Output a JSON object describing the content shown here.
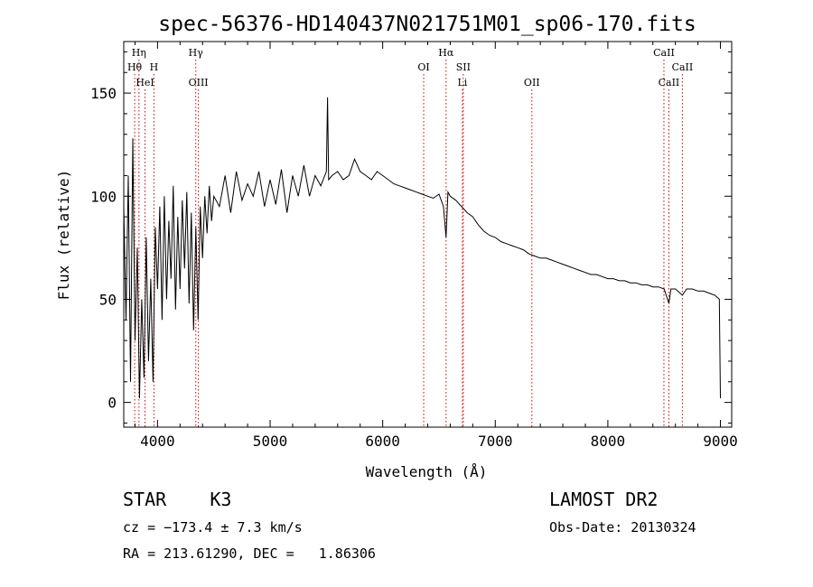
{
  "chart_data": {
    "type": "line",
    "title": "spec-56376-HD140437N021751M01_sp06-170.fits",
    "xlabel": "Wavelength (Å)",
    "ylabel": "Flux (relative)",
    "xlim": [
      3700,
      9100
    ],
    "ylim": [
      -12,
      175
    ],
    "x_ticks": [
      4000,
      5000,
      6000,
      7000,
      8000,
      9000
    ],
    "y_ticks": [
      0,
      50,
      100,
      150
    ],
    "grid": false,
    "line_color": "#000000",
    "marker_color": "#cc0000",
    "series": [
      {
        "x": [
          3700,
          3720,
          3740,
          3760,
          3780,
          3800,
          3820,
          3840,
          3860,
          3880,
          3900,
          3920,
          3940,
          3960,
          3980,
          4000,
          4020,
          4040,
          4060,
          4080,
          4100,
          4120,
          4140,
          4160,
          4180,
          4200,
          4220,
          4240,
          4260,
          4280,
          4300,
          4320,
          4340,
          4360,
          4380,
          4400,
          4420,
          4440,
          4460,
          4480,
          4500,
          4550,
          4600,
          4650,
          4700,
          4750,
          4800,
          4850,
          4900,
          4950,
          5000,
          5050,
          5100,
          5150,
          5200,
          5250,
          5300,
          5350,
          5400,
          5450,
          5500,
          5510,
          5520,
          5550,
          5600,
          5650,
          5700,
          5750,
          5800,
          5850,
          5900,
          5950,
          6000,
          6050,
          6100,
          6150,
          6200,
          6250,
          6300,
          6350,
          6400,
          6450,
          6500,
          6540,
          6563,
          6580,
          6600,
          6650,
          6700,
          6750,
          6800,
          6850,
          6900,
          6950,
          7000,
          7050,
          7100,
          7150,
          7200,
          7250,
          7300,
          7350,
          7400,
          7450,
          7500,
          7550,
          7600,
          7650,
          7700,
          7750,
          7800,
          7850,
          7900,
          7950,
          8000,
          8050,
          8100,
          8150,
          8200,
          8250,
          8300,
          8350,
          8400,
          8450,
          8500,
          8542,
          8560,
          8600,
          8662,
          8700,
          8750,
          8800,
          8850,
          8900,
          8950,
          8990,
          9000
        ],
        "y": [
          95,
          40,
          110,
          10,
          128,
          30,
          75,
          2,
          50,
          12,
          80,
          20,
          60,
          10,
          85,
          55,
          95,
          40,
          100,
          50,
          88,
          60,
          105,
          45,
          90,
          55,
          98,
          65,
          102,
          48,
          92,
          35,
          85,
          40,
          95,
          70,
          100,
          82,
          105,
          88,
          100,
          95,
          110,
          92,
          112,
          98,
          106,
          100,
          112,
          95,
          108,
          96,
          113,
          92,
          110,
          100,
          115,
          100,
          110,
          105,
          112,
          148,
          108,
          110,
          112,
          108,
          110,
          118,
          112,
          110,
          108,
          112,
          110,
          108,
          106,
          105,
          104,
          103,
          102,
          101,
          100,
          99,
          101,
          95,
          80,
          102,
          100,
          98,
          95,
          92,
          90,
          86,
          83,
          81,
          80,
          78,
          77,
          76,
          75,
          74,
          72,
          71,
          70,
          70,
          69,
          68,
          67,
          66,
          65,
          64,
          63,
          62,
          62,
          61,
          60,
          60,
          59,
          59,
          58,
          58,
          57,
          57,
          56,
          56,
          55,
          48,
          55,
          55,
          52,
          55,
          55,
          54,
          54,
          53,
          52,
          50,
          2
        ]
      }
    ],
    "lines": [
      {
        "name": "Hη",
        "x": 3835,
        "row": 0
      },
      {
        "name": "Hθ",
        "x": 3797,
        "row": 1
      },
      {
        "name": "H",
        "x": 3968,
        "row": 1
      },
      {
        "name": "HeI",
        "x": 3889,
        "row": 2
      },
      {
        "name": "Hγ",
        "x": 4340,
        "row": 0
      },
      {
        "name": "OIII",
        "x": 4363,
        "row": 2
      },
      {
        "name": "OI",
        "x": 6364,
        "row": 1
      },
      {
        "name": "Hα",
        "x": 6563,
        "row": 0
      },
      {
        "name": "SII",
        "x": 6716,
        "row": 1
      },
      {
        "name": "Li",
        "x": 6708,
        "row": 2
      },
      {
        "name": "OII",
        "x": 7325,
        "row": 2
      },
      {
        "name": "CaII",
        "x": 8498,
        "row": 0
      },
      {
        "name": "CaII",
        "x": 8662,
        "row": 1
      },
      {
        "name": "CaII",
        "x": 8542,
        "row": 2
      }
    ]
  },
  "info": {
    "object_type": "STAR",
    "subclass": "K3",
    "cz": "cz = −173.4 ± 7.3 km/s",
    "coords": "RA = 213.61290, DEC =   1.86306",
    "survey": "LAMOST DR2",
    "obs_date": "Obs-Date: 20130324"
  }
}
